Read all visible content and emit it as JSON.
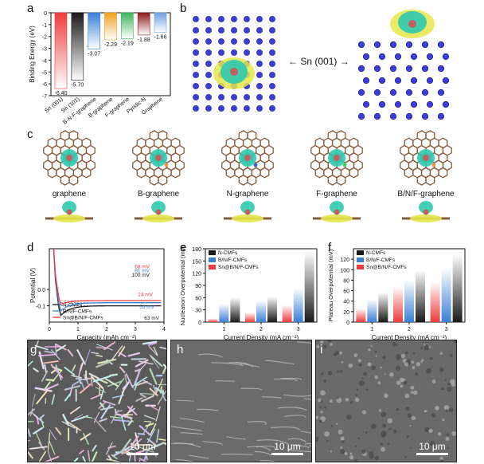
{
  "panels": {
    "a": "a",
    "b": "b",
    "c": "c",
    "d": "d",
    "e": "e",
    "f": "f",
    "g": "g",
    "h": "h",
    "i": "i"
  },
  "panel_b": {
    "center_label": "← Sn (001) →"
  },
  "panel_c": {
    "labels": [
      "graphene",
      "B-graphene",
      "N-graphene",
      "F-graphene",
      "B/N/F-graphene"
    ]
  },
  "sem": {
    "scale_label": "10 μm"
  },
  "colors": {
    "red": "#ee3b3b",
    "black": "#1a1a1a",
    "blue": "#3a7fd6",
    "orange": "#f0a020",
    "green": "#3cb35a",
    "darkred": "#8b1a1a",
    "lightblue": "#6d9ee0",
    "brown": "#8a5a3c",
    "atom_blue": "#3c3cd6",
    "charge_cyan": "#2fc9b0",
    "charge_yellow": "#e6e64a"
  },
  "chart_data": [
    {
      "id": "a",
      "type": "bar",
      "categories": [
        "Sn (001)",
        "Sn (101)",
        "B-N-F-graphene",
        "B-graphene",
        "F-graphene",
        "Pyridic-N",
        "Graphene"
      ],
      "values": [
        -6.4,
        -5.7,
        -3.07,
        -2.29,
        -2.19,
        -1.88,
        -1.66
      ],
      "value_labels": [
        "-6.40",
        "-5.70",
        "-3.07",
        "-2.29",
        "-2.19",
        "-1.88",
        "-1.66"
      ],
      "ylabel": "Binding Energy (eV)",
      "ylim": [
        0,
        -7
      ],
      "yticks": [
        "0",
        "-1",
        "-2",
        "-3",
        "-4",
        "-5",
        "-6",
        "-7"
      ],
      "colors": [
        "#ee3b3b",
        "#1a1a1a",
        "#3a7fd6",
        "#f0a020",
        "#3cb35a",
        "#8b1a1a",
        "#6d9ee0"
      ]
    },
    {
      "id": "d",
      "type": "line",
      "xlabel": "Capacity (mAh cm⁻²)",
      "ylabel": "Potential (V)",
      "xlim": [
        0,
        4
      ],
      "ylim": [
        -0.2,
        0.25
      ],
      "xticks": [
        "0",
        "1",
        "2",
        "3",
        "4"
      ],
      "yticks": [
        "-0.1",
        "0.0"
      ],
      "series": [
        {
          "name": "N-CMFs",
          "color": "#1a1a1a",
          "min": -0.163,
          "plateau": -0.1
        },
        {
          "name": "B/N/F-CMFs",
          "color": "#3a7fd6",
          "min": -0.134,
          "plateau": -0.081
        },
        {
          "name": "Sn@B/N/F-CMFs",
          "color": "#ee3b3b",
          "min": -0.092,
          "plateau": -0.068
        }
      ],
      "annotations": [
        "68 mV",
        "81 mV",
        "100 mV",
        "24 mV",
        "53 mV",
        "63 mV"
      ]
    },
    {
      "id": "e",
      "type": "bar",
      "categories": [
        "1",
        "2",
        "3"
      ],
      "xlabel": "Current Density (mA cm⁻²)",
      "ylabel": "Nucleation Overpotential (mV)",
      "ylim": [
        0,
        180
      ],
      "yticks": [
        "0",
        "30",
        "60",
        "90",
        "120",
        "150",
        "180"
      ],
      "series": [
        {
          "name": "Sn@B/N/F-CMFs",
          "values": [
            9,
            24,
            42
          ]
        },
        {
          "name": "B/N/F-CMFs",
          "values": [
            45,
            53,
            84
          ]
        },
        {
          "name": "N-CMFs",
          "values": [
            61,
            63,
            175
          ]
        }
      ]
    },
    {
      "id": "f",
      "type": "bar",
      "categories": [
        "1",
        "2",
        "3"
      ],
      "xlabel": "Current Density (mA cm⁻²)",
      "ylabel": "Plateau Overpotential (mV)",
      "ylim": [
        0,
        140
      ],
      "yticks": [
        "0",
        "20",
        "40",
        "60",
        "80",
        "100",
        "120"
      ],
      "series": [
        {
          "name": "Sn@B/N/F-CMFs",
          "values": [
            26,
            68,
            77
          ]
        },
        {
          "name": "B/N/F-CMFs",
          "values": [
            43,
            81,
            104
          ]
        },
        {
          "name": "N-CMFs",
          "values": [
            57,
            100,
            130
          ]
        }
      ]
    }
  ]
}
